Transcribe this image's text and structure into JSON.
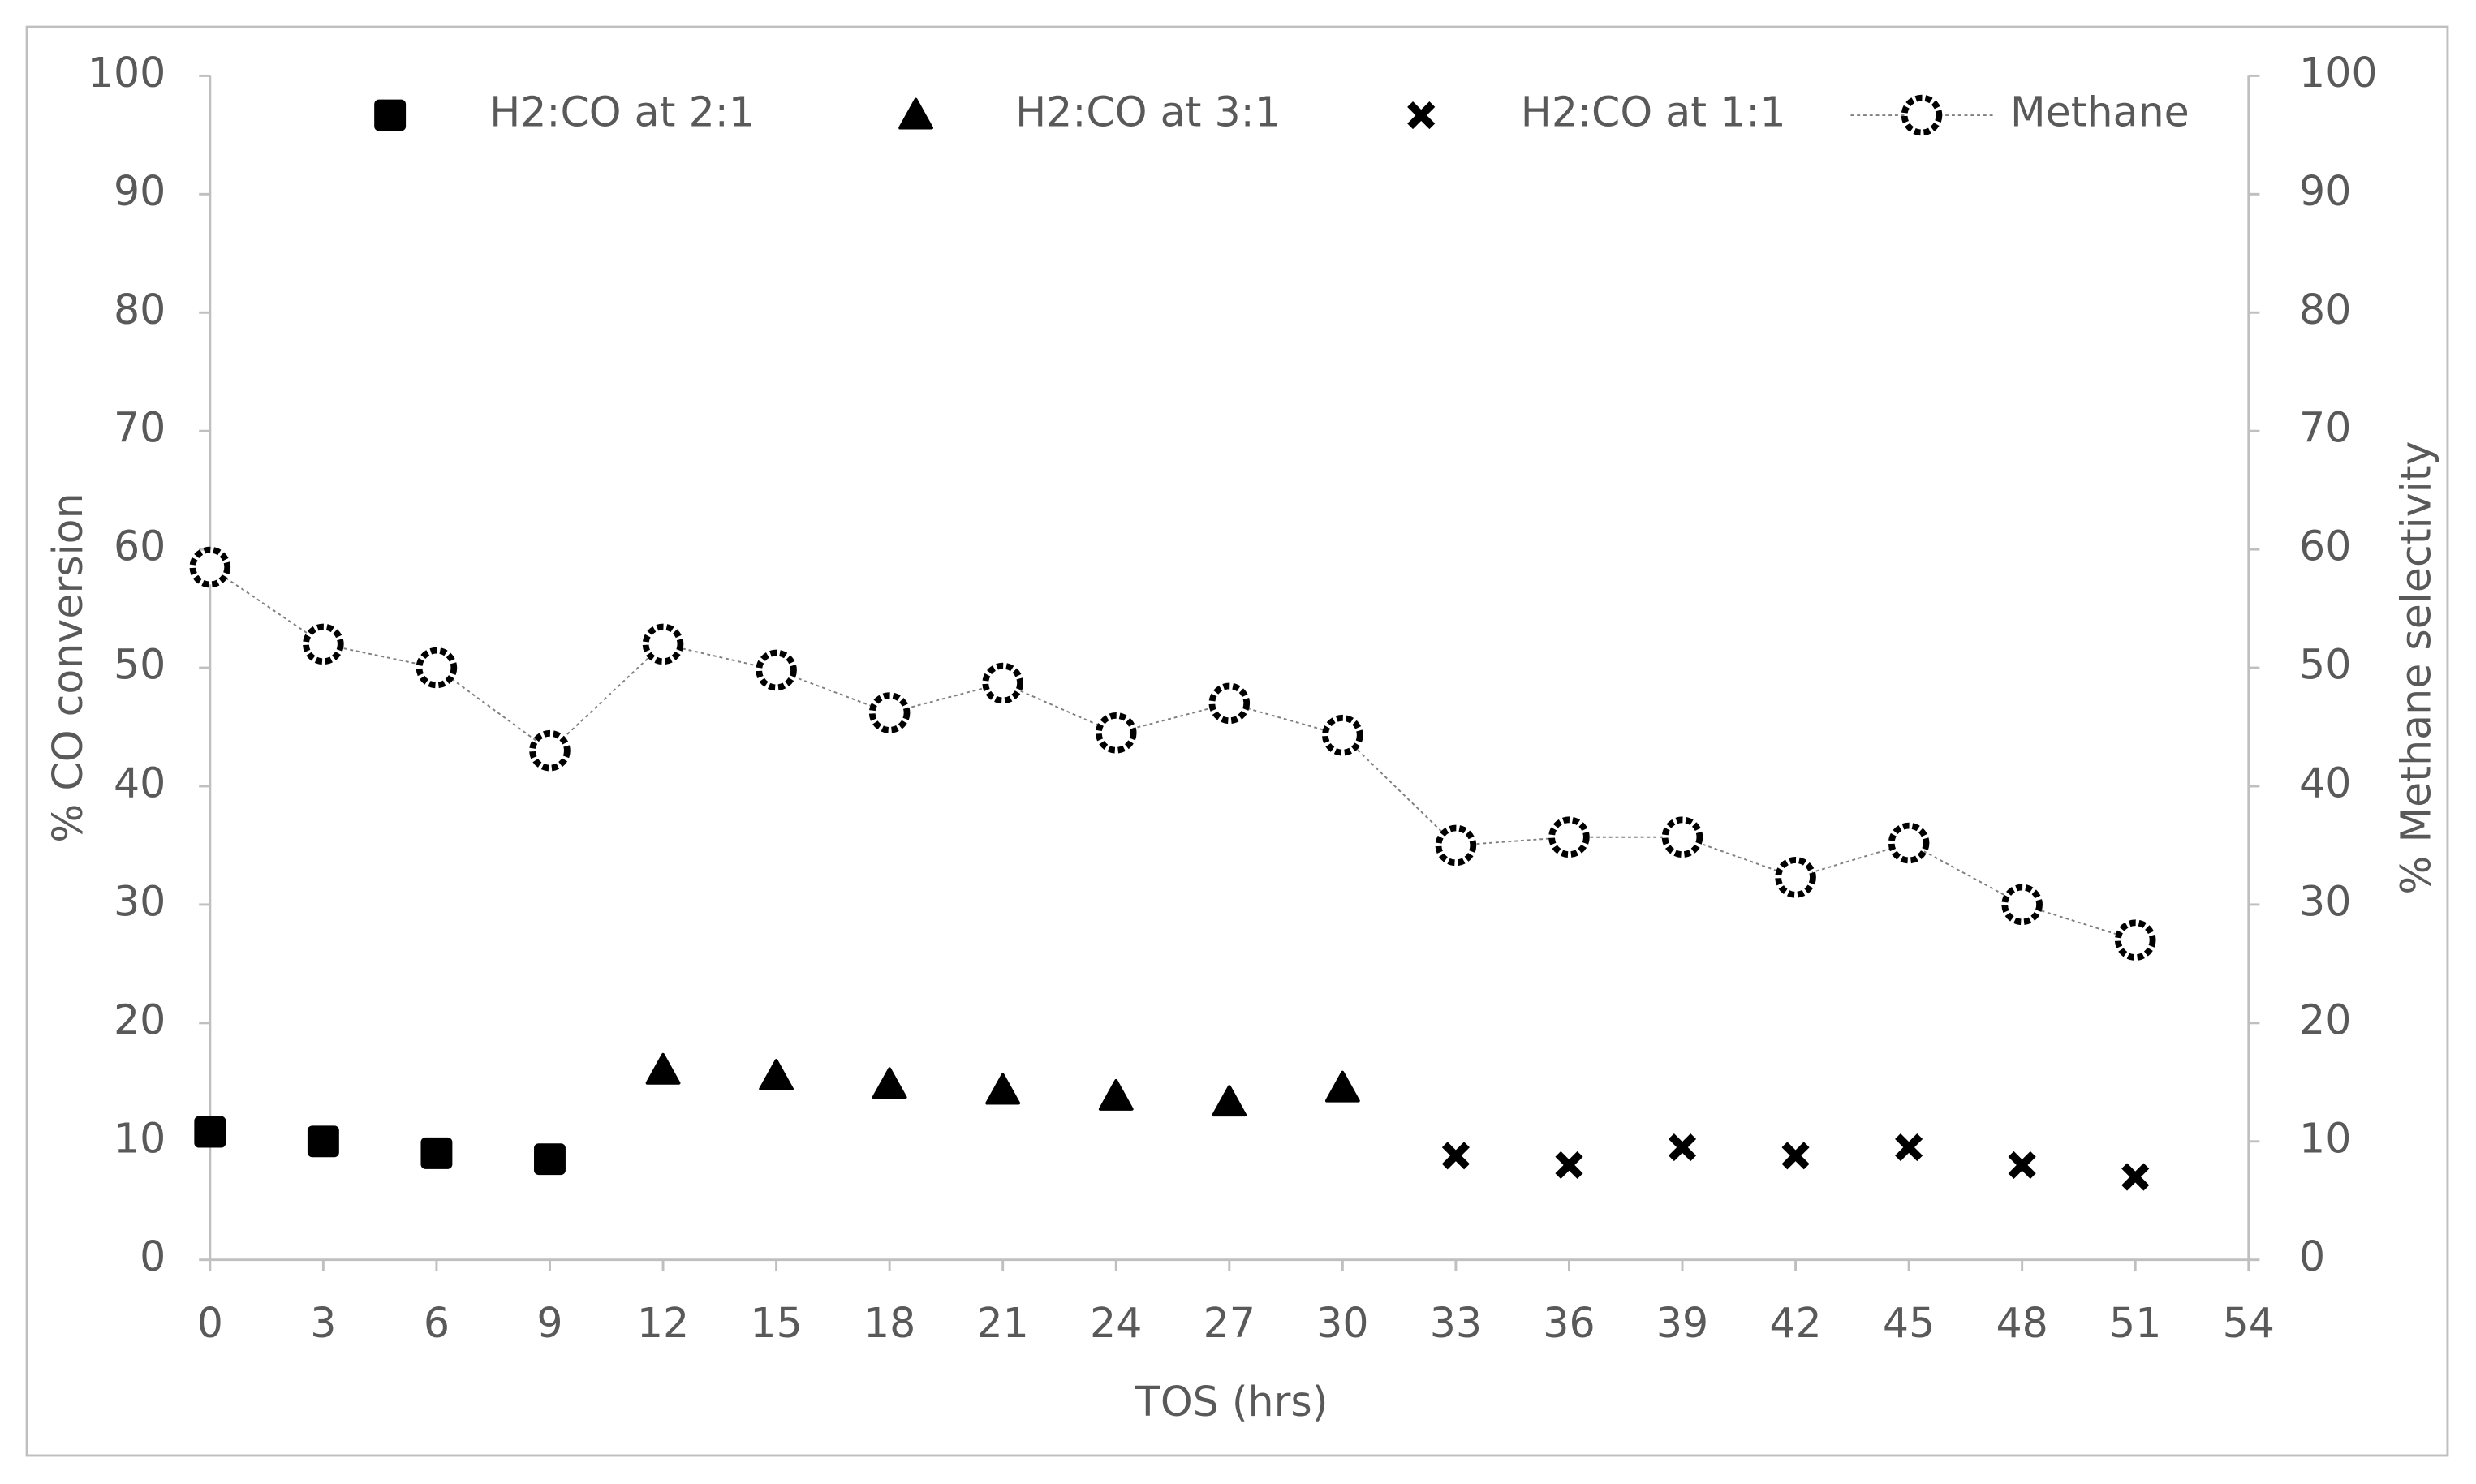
{
  "chart_data": {
    "type": "scatter",
    "x_label": "TOS (hrs)",
    "y_label": "% CO conversion",
    "y2_label": "% Methane selectivity",
    "xlim": [
      0,
      54
    ],
    "xticks": [
      0,
      3,
      6,
      9,
      12,
      15,
      18,
      21,
      24,
      27,
      30,
      33,
      36,
      39,
      42,
      45,
      48,
      51,
      54
    ],
    "ylim": [
      0,
      100
    ],
    "yticks": [
      0,
      10,
      20,
      30,
      40,
      50,
      60,
      70,
      80,
      90,
      100
    ],
    "y2lim": [
      0,
      100
    ],
    "y2ticks": [
      0,
      10,
      20,
      30,
      40,
      50,
      60,
      70,
      80,
      90,
      100
    ],
    "grid": false,
    "legend": "top",
    "series": [
      {
        "name": "H2:CO at 2:1",
        "color": "#000000",
        "marker": "square",
        "x": [
          0,
          3,
          6,
          9
        ],
        "values": [
          10.8,
          10,
          9,
          8.5
        ]
      },
      {
        "name": "H2:CO at 3:1",
        "color": "#000000",
        "marker": "triangle",
        "x": [
          12,
          15,
          18,
          21,
          24,
          27,
          30
        ],
        "values": [
          16,
          15.5,
          14.8,
          14.3,
          13.8,
          13.3,
          14.5
        ]
      },
      {
        "name": "H2:CO at 1:1",
        "color": "#000000",
        "marker": "cross",
        "x": [
          33,
          36,
          39,
          42,
          45,
          48,
          51
        ],
        "values": [
          8.8,
          8,
          9.5,
          8.8,
          9.5,
          8,
          7
        ]
      },
      {
        "name": "Methane",
        "color": "#000000",
        "marker": "circle",
        "line": true,
        "axis": "y2",
        "x": [
          0,
          3,
          6,
          9,
          12,
          15,
          18,
          21,
          24,
          27,
          30,
          33,
          36,
          39,
          42,
          45,
          48,
          51
        ],
        "values": [
          58.5,
          52,
          50,
          43,
          52,
          49.8,
          46.2,
          48.7,
          44.5,
          47,
          44.3,
          35,
          35.7,
          35.7,
          32.3,
          35.2,
          30,
          27
        ]
      }
    ]
  }
}
